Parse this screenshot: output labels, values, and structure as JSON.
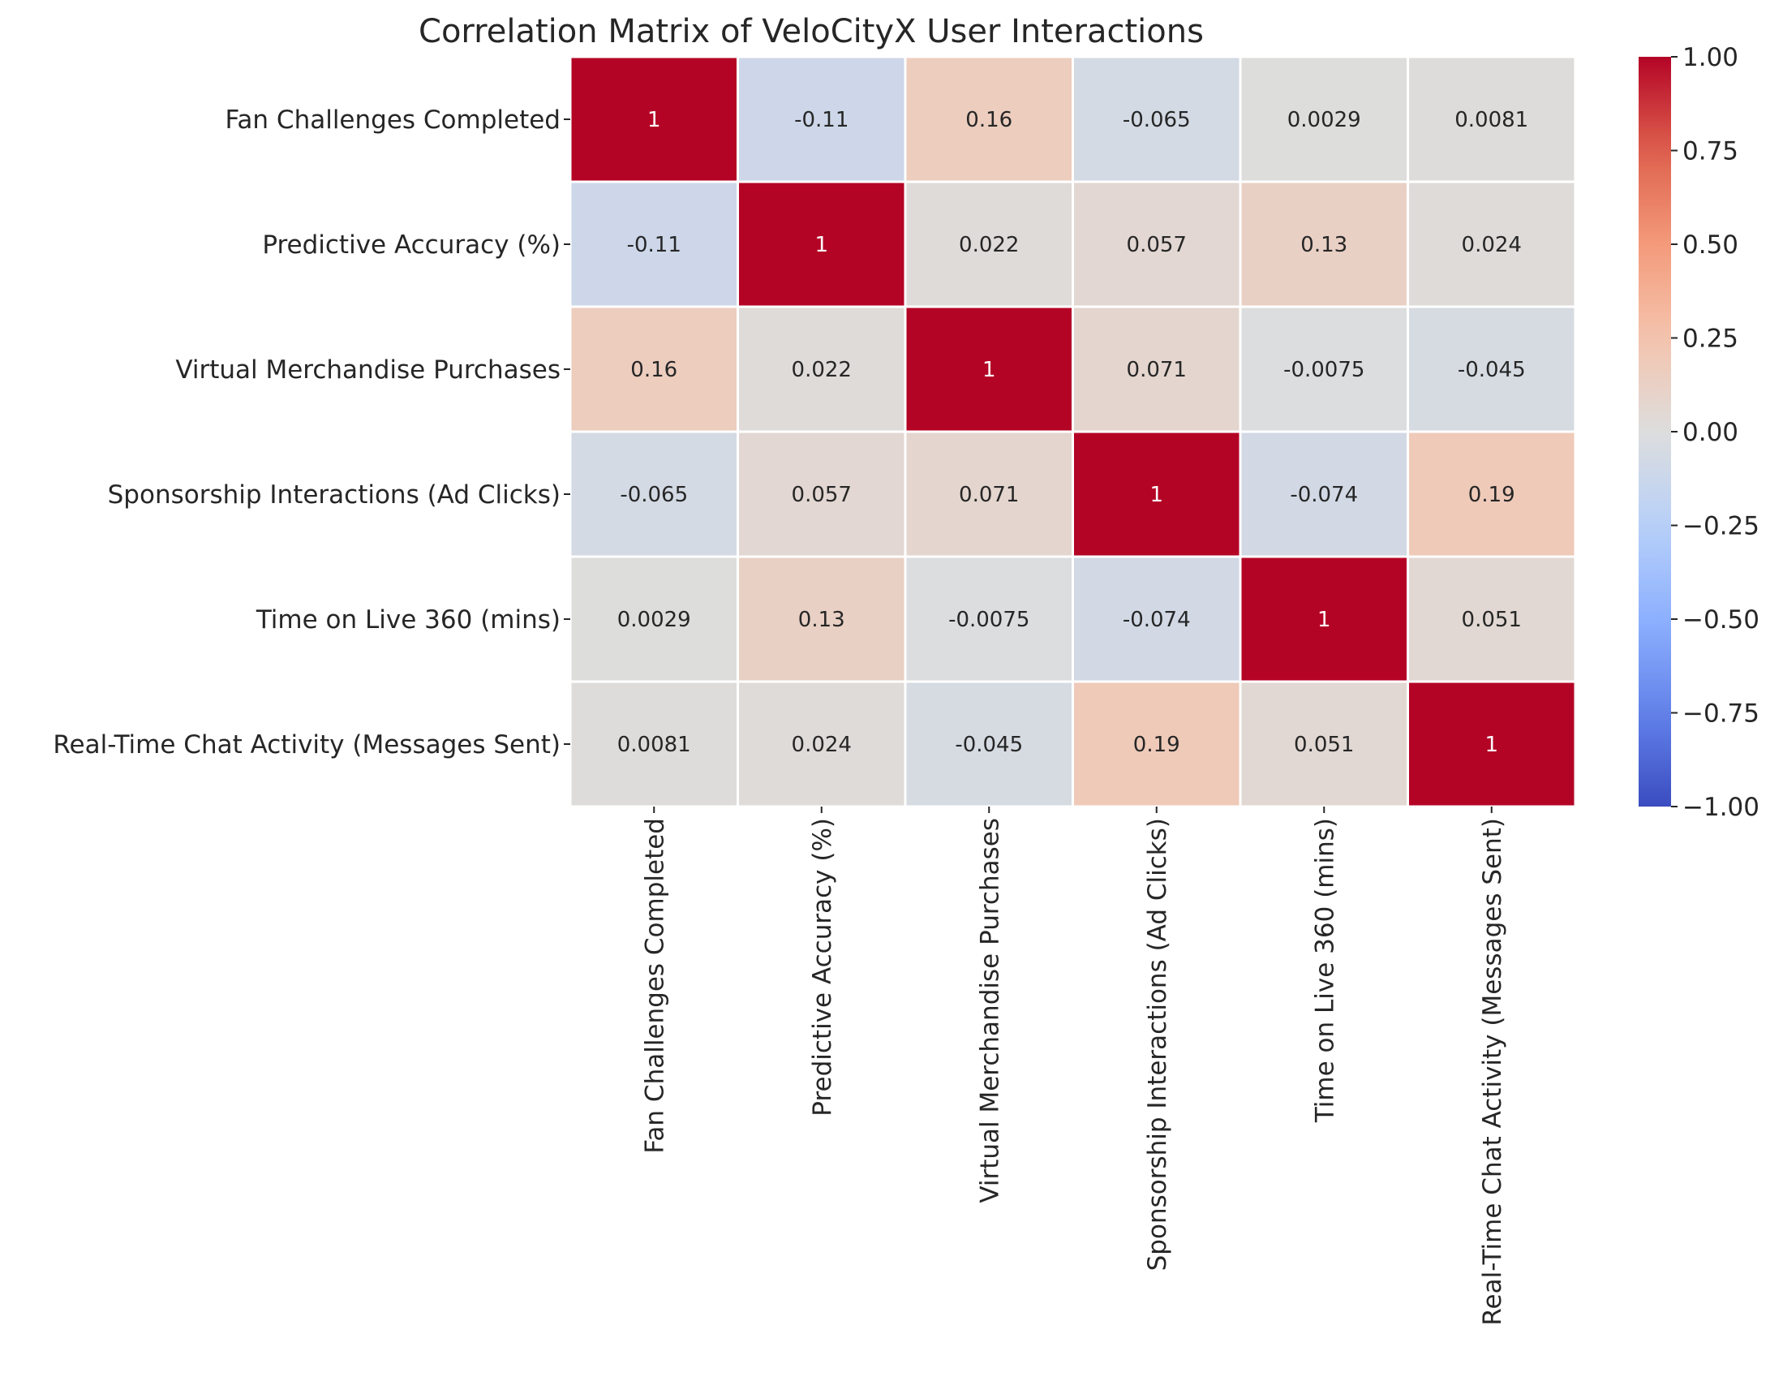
{
  "chart_data": {
    "type": "heatmap",
    "title": "Correlation Matrix of VeloCityX User Interactions",
    "rows": [
      "Fan Challenges Completed",
      "Predictive Accuracy (%)",
      "Virtual Merchandise Purchases",
      "Sponsorship Interactions (Ad Clicks)",
      "Time on Live 360 (mins)",
      "Real-Time Chat Activity (Messages Sent)"
    ],
    "columns": [
      "Fan Challenges Completed",
      "Predictive Accuracy (%)",
      "Virtual Merchandise Purchases",
      "Sponsorship Interactions (Ad Clicks)",
      "Time on Live 360 (mins)",
      "Real-Time Chat Activity (Messages Sent)"
    ],
    "values": [
      [
        1,
        -0.11,
        0.16,
        -0.065,
        0.0029,
        0.0081
      ],
      [
        -0.11,
        1,
        0.022,
        0.057,
        0.13,
        0.024
      ],
      [
        0.16,
        0.022,
        1,
        0.071,
        -0.0075,
        -0.045
      ],
      [
        -0.065,
        0.057,
        0.071,
        1,
        -0.074,
        0.19
      ],
      [
        0.0029,
        0.13,
        -0.0075,
        -0.074,
        1,
        0.051
      ],
      [
        0.0081,
        0.024,
        -0.045,
        0.19,
        0.051,
        1
      ]
    ],
    "value_labels": [
      [
        "1",
        "-0.11",
        "0.16",
        "-0.065",
        "0.0029",
        "0.0081"
      ],
      [
        "-0.11",
        "1",
        "0.022",
        "0.057",
        "0.13",
        "0.024"
      ],
      [
        "0.16",
        "0.022",
        "1",
        "0.071",
        "-0.0075",
        "-0.045"
      ],
      [
        "-0.065",
        "0.057",
        "0.071",
        "1",
        "-0.074",
        "0.19"
      ],
      [
        "0.0029",
        "0.13",
        "-0.0075",
        "-0.074",
        "1",
        "0.051"
      ],
      [
        "0.0081",
        "0.024",
        "-0.045",
        "0.19",
        "0.051",
        "1"
      ]
    ],
    "colormap": "coolwarm",
    "vmin": -1,
    "vmax": 1,
    "colorbar_ticks": [
      1.0,
      0.75,
      0.5,
      0.25,
      0.0,
      -0.25,
      -0.5,
      -0.75,
      -1.0
    ],
    "colorbar_tick_labels": [
      "1.00",
      "0.75",
      "0.50",
      "0.25",
      "0.00",
      "−0.25",
      "−0.50",
      "−0.75",
      "−1.00"
    ],
    "grid": true
  }
}
